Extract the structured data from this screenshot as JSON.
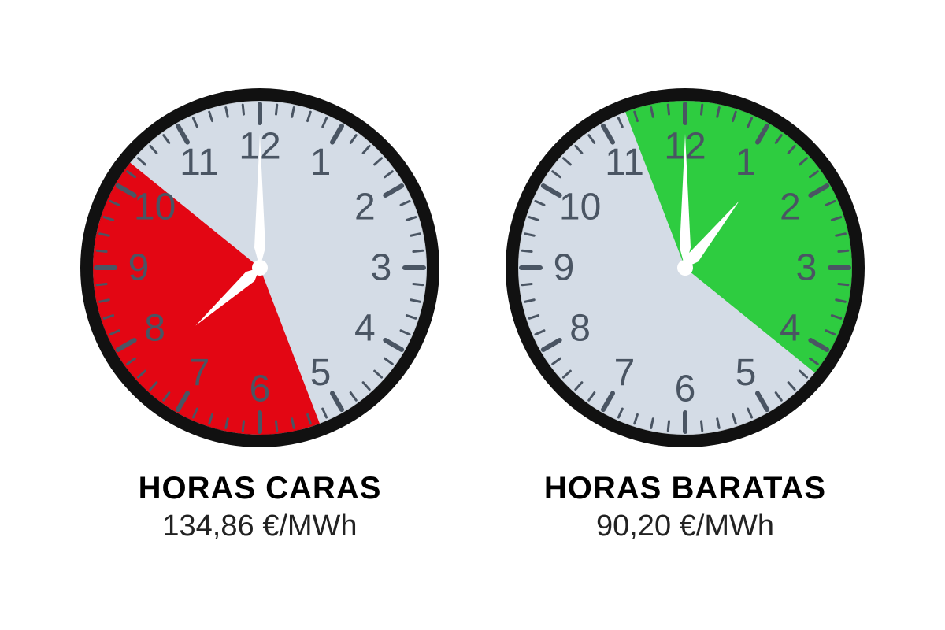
{
  "clocks": [
    {
      "name": "expensive-hours-clock",
      "title": "HORAS CARAS",
      "price_value": "134,86",
      "price_unit": "€/MWh",
      "face_color": "#d4dce6",
      "sector_color": "#e30613",
      "border_color": "#111111",
      "tick_color": "#4a5563",
      "number_color": "#4a5563",
      "hand_color": "#ffffff",
      "sector_start_hour": 5.3,
      "sector_end_hour": 10.3,
      "minute_hand_hour": 12,
      "hour_hand_hour": 7.6,
      "numbers": [
        "12",
        "1",
        "2",
        "3",
        "4",
        "5",
        "6",
        "7",
        "8",
        "9",
        "10",
        "11"
      ],
      "number_fontsize": 48,
      "border_width": 16,
      "major_tick_len": 24,
      "minor_tick_len": 12,
      "tick_width_major": 6,
      "tick_width_minor": 3,
      "minute_hand_len": 170,
      "hour_hand_len": 110,
      "minute_hand_width": 14,
      "hour_hand_width": 16
    },
    {
      "name": "cheap-hours-clock",
      "title": "HORAS BARATAS",
      "price_value": "90,20",
      "price_unit": "€/MWh",
      "face_color": "#d4dce6",
      "sector_color": "#2ecc40",
      "border_color": "#111111",
      "tick_color": "#4a5563",
      "number_color": "#4a5563",
      "hand_color": "#ffffff",
      "sector_start_hour": 11.3,
      "sector_end_hour": 4.3,
      "minute_hand_hour": 12,
      "hour_hand_hour": 1.3,
      "numbers": [
        "12",
        "1",
        "2",
        "3",
        "4",
        "5",
        "6",
        "7",
        "8",
        "9",
        "10",
        "11"
      ],
      "number_fontsize": 48,
      "border_width": 16,
      "major_tick_len": 24,
      "minor_tick_len": 12,
      "tick_width_major": 6,
      "tick_width_minor": 3,
      "minute_hand_len": 170,
      "hour_hand_len": 110,
      "minute_hand_width": 14,
      "hour_hand_width": 16
    }
  ],
  "text": {
    "title_fontsize": 40,
    "value_fontsize": 38,
    "title_color": "#000000",
    "value_color": "#222222"
  }
}
